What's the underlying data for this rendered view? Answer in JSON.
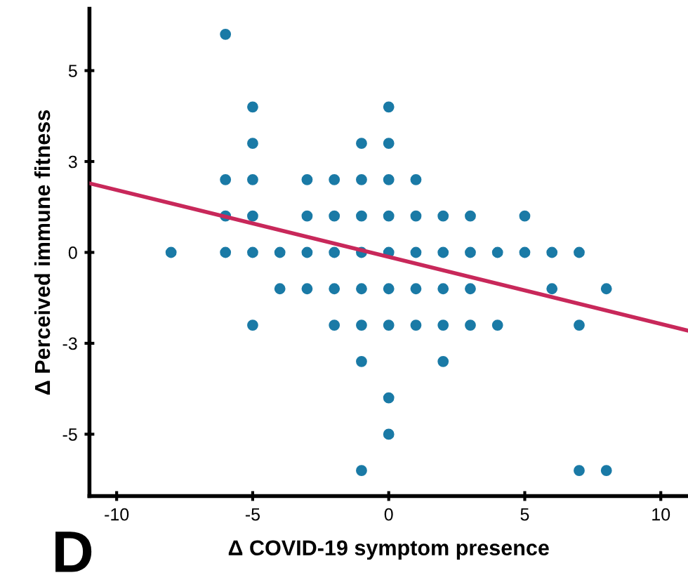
{
  "chart_data": {
    "type": "scatter",
    "xlabel": "Δ COVID-19 symptom presence",
    "ylabel": "Δ Perceived immune fitness",
    "annotations": [
      "D"
    ],
    "xlim": [
      -11,
      11
    ],
    "ylim": [
      -6.7,
      6.7
    ],
    "xticks": [
      -10,
      -5,
      0,
      5,
      10
    ],
    "yticks": [
      {
        "value": 5,
        "label": "5"
      },
      {
        "value": 2.5,
        "label": "3"
      },
      {
        "value": 0,
        "label": "0"
      },
      {
        "value": -2.5,
        "label": "-3"
      },
      {
        "value": -5,
        "label": "-5"
      }
    ],
    "grid": false,
    "series": [
      {
        "marker": "circle",
        "color": "#1a7aa6",
        "x": [
          -6,
          -5,
          -5,
          -6,
          -5,
          -6,
          -5,
          -8,
          -6,
          -5,
          -4,
          -3,
          -2,
          -1,
          0,
          1,
          2,
          3,
          4,
          5,
          6,
          7,
          -3,
          -2,
          -1,
          0,
          1,
          2,
          3,
          5,
          0,
          -1,
          0,
          -3,
          -2,
          -1,
          0,
          1,
          -4,
          -3,
          -2,
          -1,
          0,
          1,
          2,
          3,
          6,
          8,
          -5,
          -2,
          -1,
          0,
          1,
          2,
          3,
          4,
          7,
          -1,
          2,
          0,
          0,
          -1,
          7,
          8
        ],
        "values": [
          6,
          4,
          3,
          2,
          2,
          1,
          1,
          0,
          0,
          0,
          0,
          0,
          0,
          0,
          0,
          0,
          0,
          0,
          0,
          0,
          0,
          0,
          1,
          1,
          1,
          1,
          1,
          1,
          1,
          1,
          4,
          3,
          3,
          2,
          2,
          2,
          2,
          2,
          -1,
          -1,
          -1,
          -1,
          -1,
          -1,
          -1,
          -1,
          -1,
          -1,
          -2,
          -2,
          -2,
          -2,
          -2,
          -2,
          -2,
          -2,
          -2,
          -3,
          -3,
          -4,
          -5,
          -6,
          -6,
          -6
        ]
      },
      {
        "type": "line",
        "color": "#c8285a",
        "x": [
          -11,
          11
        ],
        "values": [
          1.9,
          -2.15
        ]
      }
    ]
  }
}
